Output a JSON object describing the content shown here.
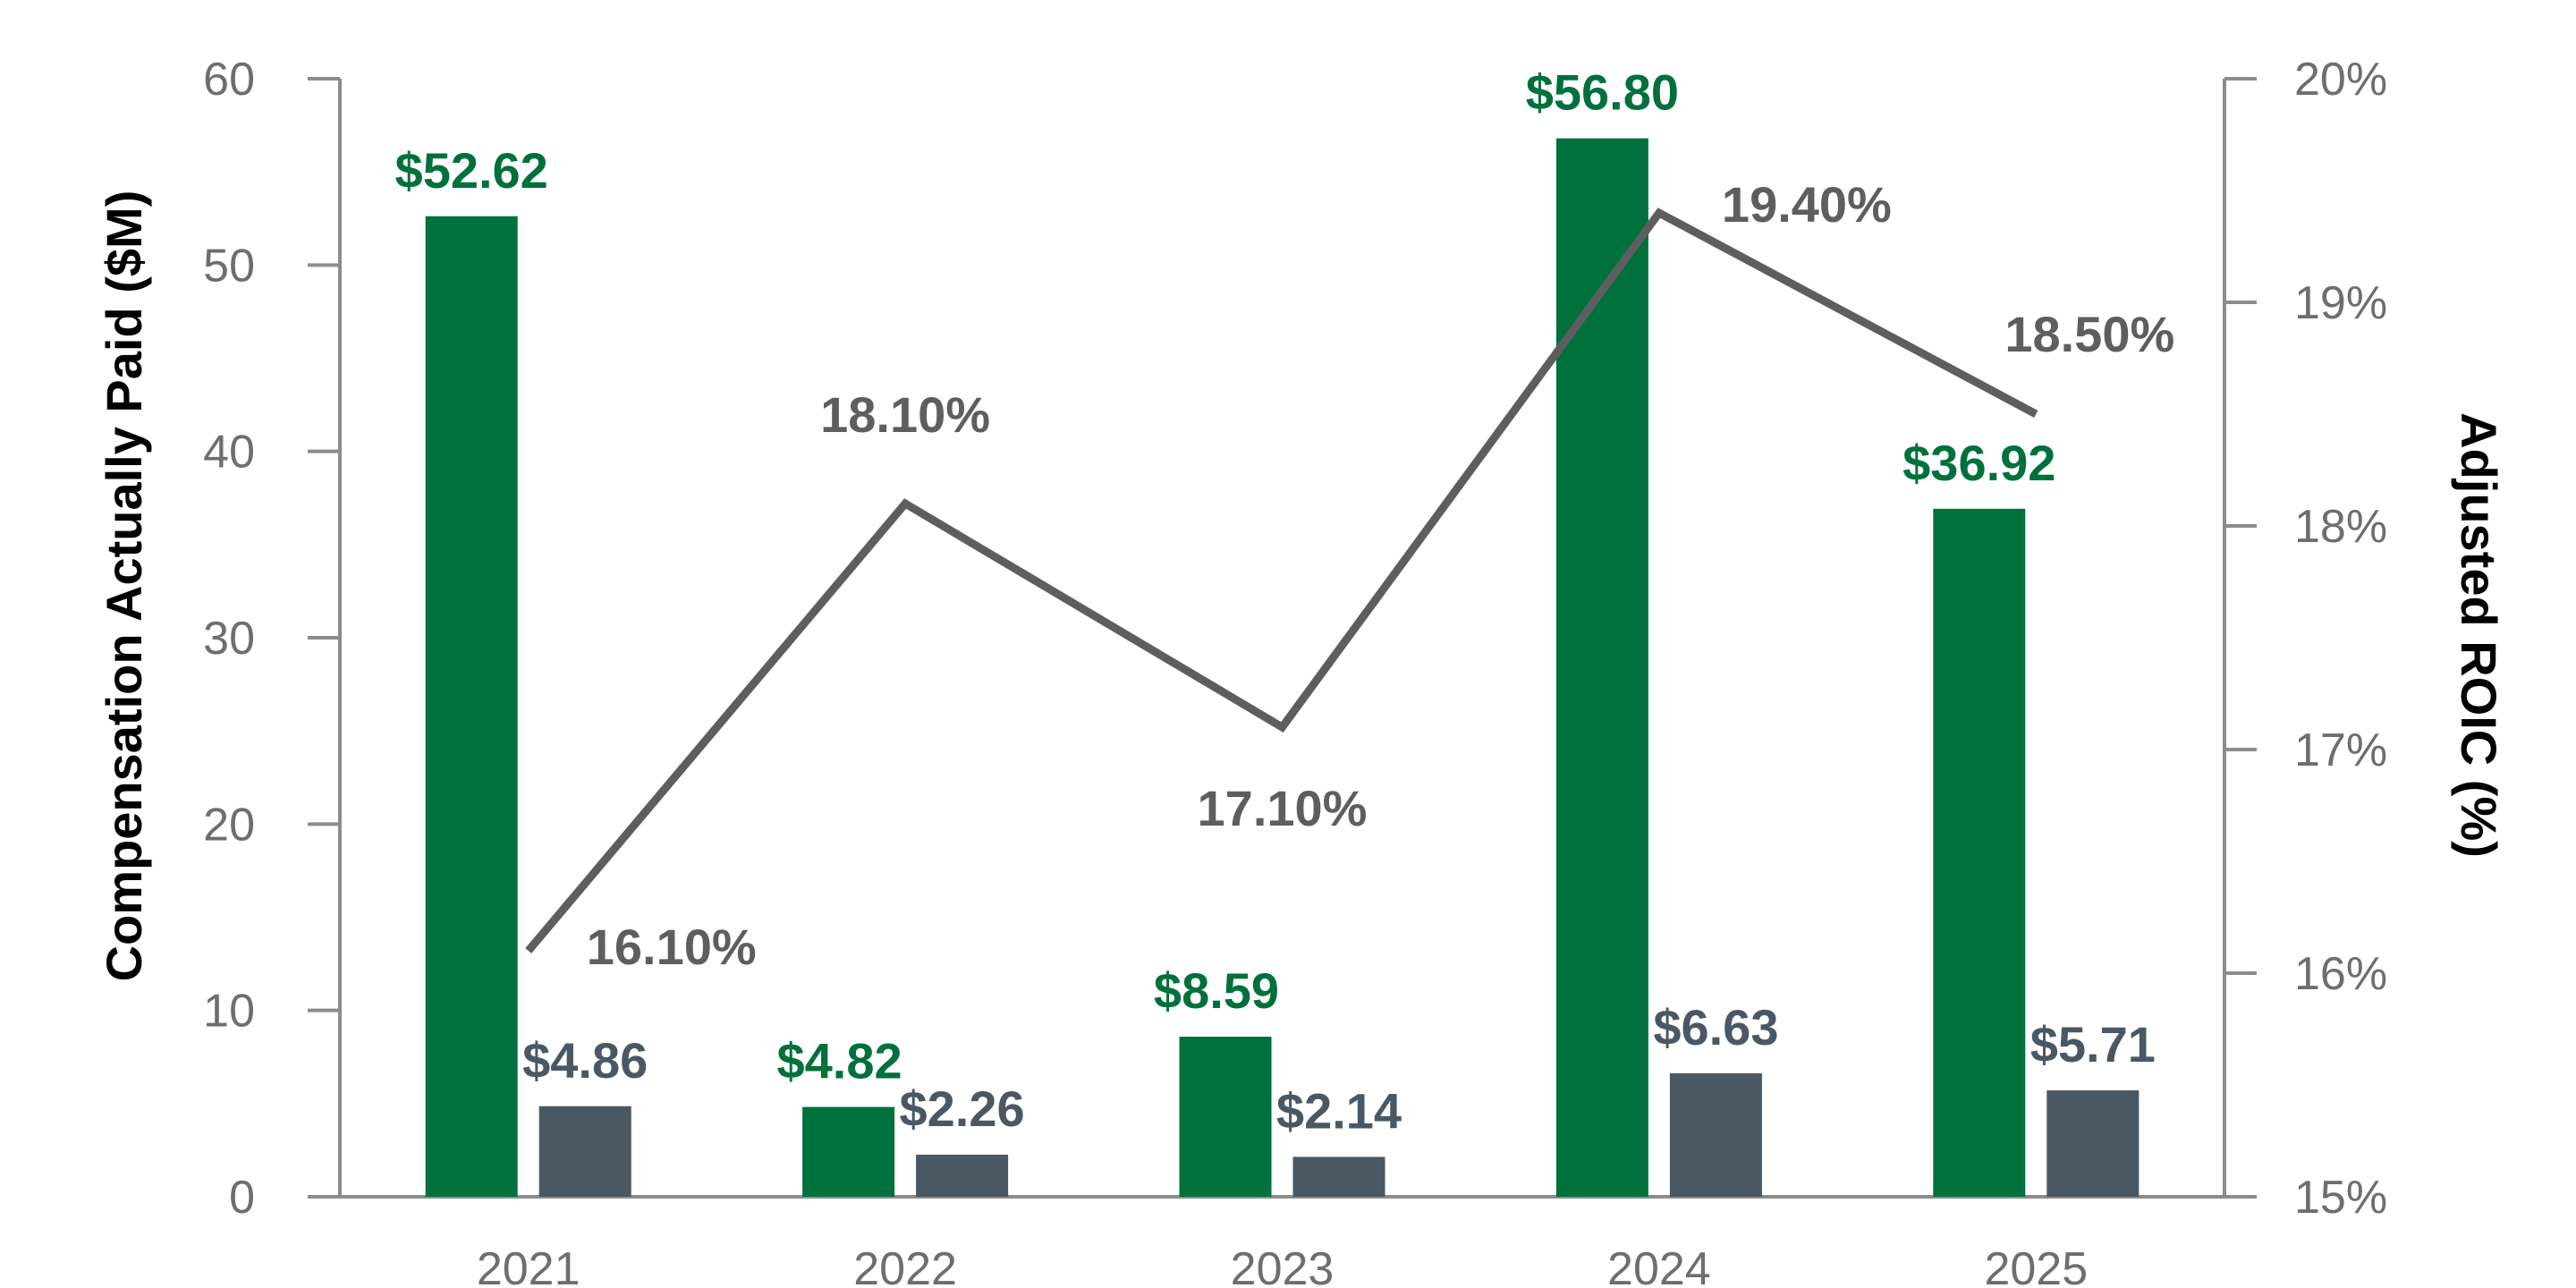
{
  "chart_data": {
    "type": "bar",
    "categories": [
      "2021",
      "2022",
      "2023",
      "2024",
      "2025"
    ],
    "series": [
      {
        "values": [
          52.62,
          4.82,
          8.59,
          56.8,
          36.92
        ],
        "labels": [
          "$52.62",
          "$4.82",
          "$8.59",
          "$56.80",
          "$36.92"
        ],
        "color": "#00703c",
        "axis": "left",
        "type": "bar"
      },
      {
        "values": [
          4.86,
          2.26,
          2.14,
          6.63,
          5.71
        ],
        "labels": [
          "$4.86",
          "$2.26",
          "$2.14",
          "$6.63",
          "$5.71"
        ],
        "color": "#4a5864",
        "axis": "left",
        "type": "bar"
      },
      {
        "values": [
          16.1,
          18.1,
          17.1,
          19.4,
          18.5
        ],
        "labels": [
          "16.10%",
          "18.10%",
          "17.10%",
          "19.40%",
          "18.50%"
        ],
        "color": "#5e5e5e",
        "axis": "right",
        "type": "line"
      }
    ],
    "ylabel": "Compensation Actually Paid ($M)",
    "y2label": "Adjusted ROIC (%)",
    "ylim": [
      0,
      60
    ],
    "y2lim": [
      15,
      20
    ],
    "yticks": [
      "0",
      "10",
      "20",
      "30",
      "40",
      "50",
      "60"
    ],
    "y2ticks": [
      "15%",
      "16%",
      "17%",
      "18%",
      "19%",
      "20%"
    ],
    "grid": false,
    "legend": "none"
  }
}
